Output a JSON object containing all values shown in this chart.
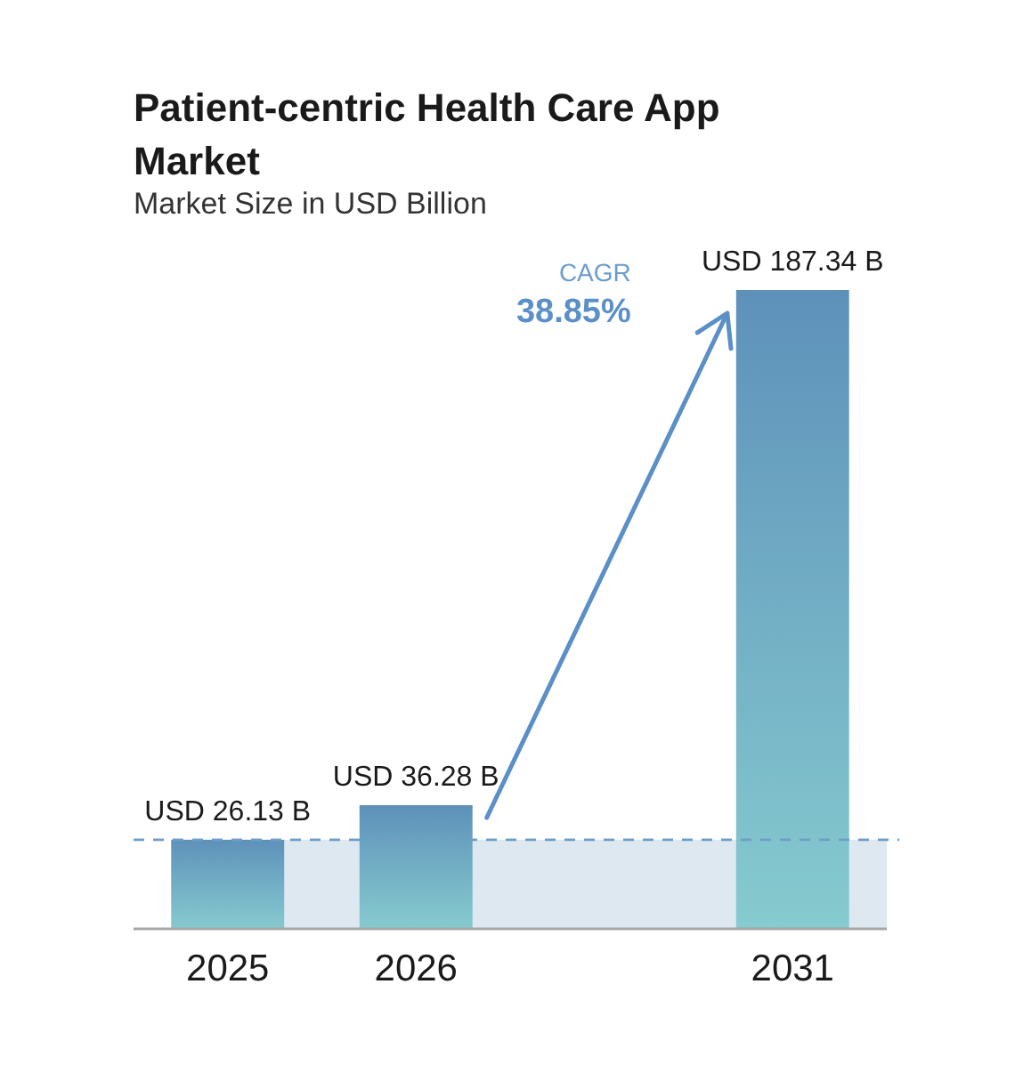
{
  "chart_data": {
    "type": "bar",
    "title": "Patient-centric Health Care App Market",
    "subtitle": "Market Size in USD Billion",
    "categories": [
      "2025",
      "2026",
      null,
      "2031"
    ],
    "values": [
      26.13,
      36.28,
      null,
      187.34
    ],
    "color": "#5e91ba",
    "value_labels": [
      "USD 26.13 B",
      "USD 36.28 B",
      null,
      "USD 187.34 B"
    ],
    "annotations": [
      "CAGR",
      "38.85%"
    ],
    "ref_lines": [
      {
        "axis": "y",
        "value": 26.13,
        "color": "#6f9fc6",
        "line_style": "dashed"
      }
    ],
    "bands": [
      {
        "axis": "y",
        "from": 0,
        "to": 26.13,
        "color": "#dde8f1"
      }
    ]
  }
}
